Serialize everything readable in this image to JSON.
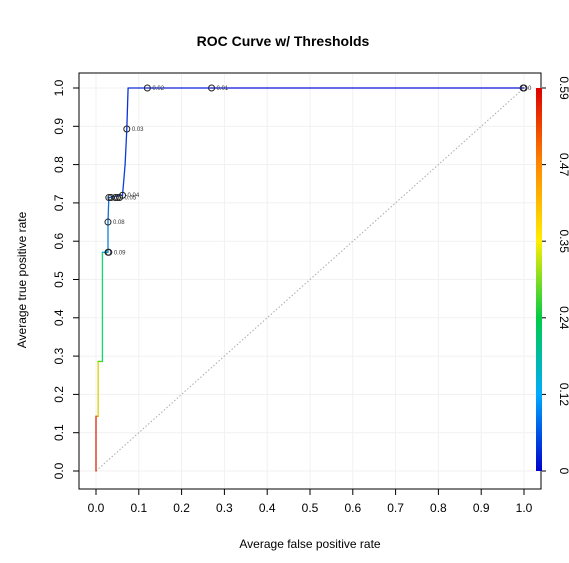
{
  "chart_data": {
    "type": "line",
    "title": "ROC Curve w/ Thresholds",
    "xlabel": "Average false positive rate",
    "ylabel": "Average true positive rate",
    "xlim": [
      0,
      1
    ],
    "ylim": [
      0,
      1
    ],
    "x_ticks": [
      "0.0",
      "0.1",
      "0.2",
      "0.3",
      "0.4",
      "0.5",
      "0.6",
      "0.7",
      "0.8",
      "0.9",
      "1.0"
    ],
    "y_ticks": [
      "0.0",
      "0.1",
      "0.2",
      "0.3",
      "0.4",
      "0.5",
      "0.6",
      "0.7",
      "0.8",
      "0.9",
      "1.0"
    ],
    "colorbar": {
      "labels": [
        "0",
        "0.12",
        "0.24",
        "0.35",
        "0.47",
        "0.59"
      ],
      "min": 0,
      "max": 0.59
    },
    "diagonal": true,
    "curve": [
      {
        "x": 0.0,
        "y": 0.0,
        "t": 0.59
      },
      {
        "x": 0.0,
        "y": 0.143,
        "t": 0.55
      },
      {
        "x": 0.005,
        "y": 0.143,
        "t": 0.5
      },
      {
        "x": 0.005,
        "y": 0.286,
        "t": 0.4
      },
      {
        "x": 0.015,
        "y": 0.286,
        "t": 0.3
      },
      {
        "x": 0.015,
        "y": 0.571,
        "t": 0.15
      },
      {
        "x": 0.028,
        "y": 0.571,
        "t": 0.09
      },
      {
        "x": 0.028,
        "y": 0.65,
        "t": 0.08
      },
      {
        "x": 0.03,
        "y": 0.714,
        "t": 0.06
      },
      {
        "x": 0.062,
        "y": 0.72,
        "t": 0.04
      },
      {
        "x": 0.068,
        "y": 0.8,
        "t": 0.035
      },
      {
        "x": 0.072,
        "y": 0.893,
        "t": 0.03
      },
      {
        "x": 0.075,
        "y": 1.0,
        "t": 0.025
      },
      {
        "x": 0.12,
        "y": 1.0,
        "t": 0.02
      },
      {
        "x": 0.27,
        "y": 1.0,
        "t": 0.01
      },
      {
        "x": 1.0,
        "y": 1.0,
        "t": 0.0
      }
    ],
    "threshold_points": [
      {
        "x": 0.028,
        "y": 0.571,
        "label": "0.09",
        "extra_circles": [
          0.03
        ]
      },
      {
        "x": 0.028,
        "y": 0.65,
        "label": "0.08"
      },
      {
        "x": 0.03,
        "y": 0.714,
        "label": "0.05",
        "extra_circles": [
          0.035,
          0.045,
          0.05,
          0.055
        ]
      },
      {
        "x": 0.062,
        "y": 0.72,
        "label": "0.04"
      },
      {
        "x": 0.072,
        "y": 0.893,
        "label": "0.03"
      },
      {
        "x": 0.12,
        "y": 1.0,
        "label": "0.02"
      },
      {
        "x": 0.27,
        "y": 1.0,
        "label": "0.01"
      },
      {
        "x": 0.998,
        "y": 1.0,
        "label": "0",
        "extra_circles": [
          1.0
        ]
      }
    ]
  }
}
